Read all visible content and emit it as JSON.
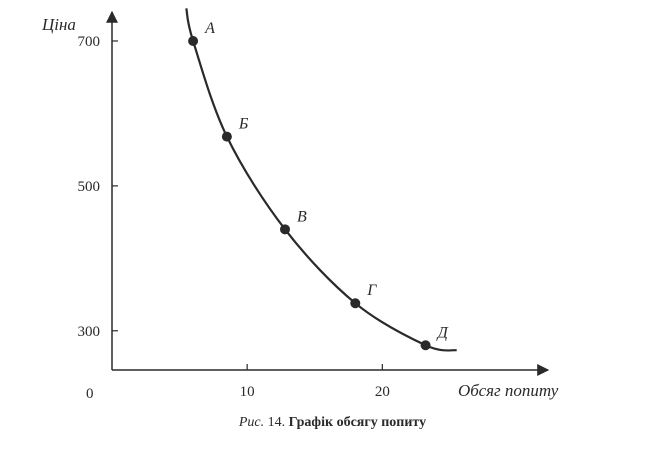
{
  "caption": {
    "prefix": "Рис.",
    "number": "14.",
    "title": "Графік обсягу попиту"
  },
  "chart_data": {
    "type": "line",
    "title": "",
    "xlabel": "Обсяг попиту",
    "ylabel": "Ціна",
    "origin_label": "0",
    "xlim": [
      0,
      31
    ],
    "ylim": [
      250,
      740
    ],
    "x_ticks": [
      10,
      20
    ],
    "y_ticks": [
      300,
      500,
      700
    ],
    "points": [
      {
        "label": "А",
        "x": 6,
        "y": 700
      },
      {
        "label": "Б",
        "x": 8.5,
        "y": 568
      },
      {
        "label": "В",
        "x": 12.8,
        "y": 440
      },
      {
        "label": "Г",
        "x": 18,
        "y": 338
      },
      {
        "label": "Д",
        "x": 23.2,
        "y": 280
      }
    ],
    "curve_extends": {
      "start": {
        "x": 5.5,
        "y": 745
      },
      "end": {
        "x": 25.5,
        "y": 273
      }
    },
    "grid": false,
    "legend": "none",
    "colors": {
      "ink": "#2a2a2a"
    }
  }
}
